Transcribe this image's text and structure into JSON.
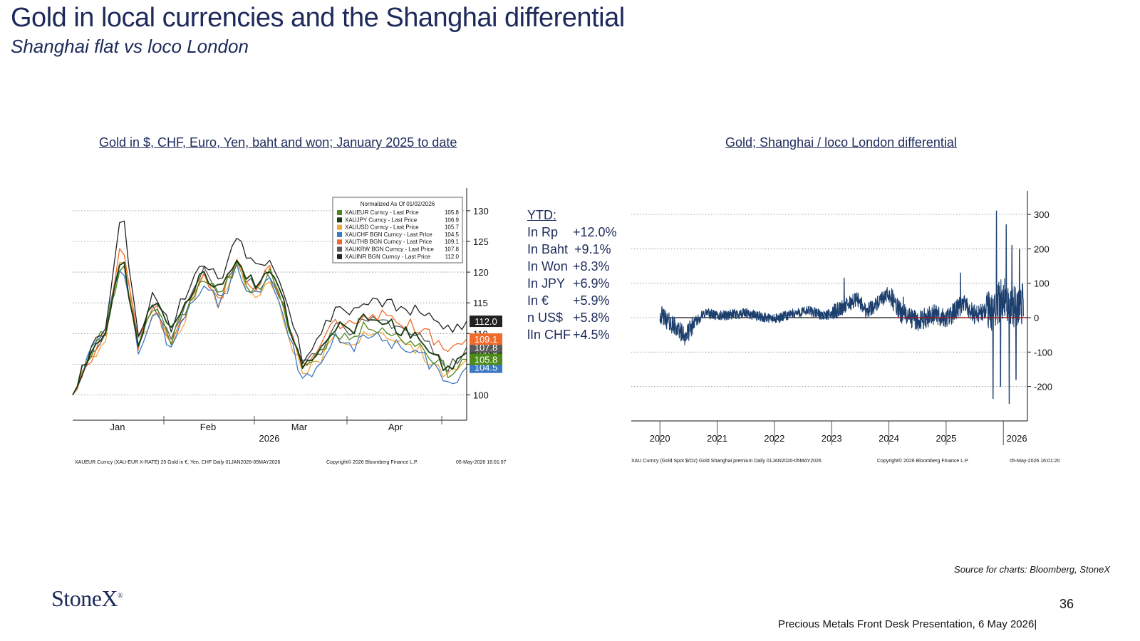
{
  "slide": {
    "title": "Gold in local currencies and the Shanghai differential",
    "subtitle": "Shanghai  flat vs loco London",
    "source": "Source for charts: Bloomberg, StoneX",
    "logo_text": "StoneX",
    "logo_mark": "®",
    "page_number": "36",
    "footer": "Precious Metals Front Desk Presentation, 6 May 2026|"
  },
  "ytd": {
    "heading": "YTD:",
    "rows": [
      {
        "name": "In Rp",
        "value": "+12.0%"
      },
      {
        "name": "In Baht",
        "value": "+9.1%"
      },
      {
        "name": "In Won",
        "value": "+8.3%"
      },
      {
        "name": "In JPY",
        "value": "+6.9%"
      },
      {
        "name": "In €",
        "value": "+5.9%"
      },
      {
        "name": "n US$",
        "value": "+5.8%"
      },
      {
        "name": "lIn CHF",
        "value": "+4.5%"
      }
    ]
  },
  "colors": {
    "text": "#1d2a5a",
    "XAUEUR": "#4e8a1b",
    "XAUJPY": "#173c12",
    "XAUUSD": "#f2a53a",
    "XAUCHF": "#3b78c2",
    "XAUTHB": "#f06a2c",
    "XAUKRW": "#5a5a5a",
    "XAUINR": "#222222",
    "differential": "#1c3f6e",
    "zero_line": "#b01818"
  },
  "chart_data": [
    {
      "type": "line",
      "title": "Gold in $, CHF, Euro, Yen, baht and won; January 2025 to date",
      "x_tick_labels": [
        "Jan",
        "Feb",
        "Mar",
        "Apr"
      ],
      "x_year_label": "2026",
      "yticks": [
        100,
        105,
        110,
        115,
        120,
        125,
        130
      ],
      "ytick_labels": [
        "100",
        "105",
        "110",
        "115",
        "120",
        "125",
        "130"
      ],
      "ylim": [
        96,
        133
      ],
      "grid": true,
      "legend_title": "Normalized As Of 01/02/2026",
      "legend_position": "top-right",
      "n_points": 85,
      "series": [
        {
          "name": "XAUEUR Curncy - Last Price",
          "last": 105.8,
          "last_label": "105.8",
          "color_key": "XAUEUR",
          "anchors": [
            100,
            106.5,
            110.8,
            122.4,
            108.5,
            114.8,
            109.0,
            115.0,
            119.5,
            115.5,
            121.8,
            116.5,
            119.8,
            112.5,
            104.5,
            107.0,
            110.5,
            109.0,
            111.5,
            110.8,
            109.0,
            108.5,
            106.0,
            103.5,
            105.8
          ]
        },
        {
          "name": "XAUJPY Curncy - Last Price",
          "last": 106.9,
          "last_label": "106.9",
          "color_key": "XAUJPY",
          "anchors": [
            100,
            106.8,
            111.0,
            122.5,
            109.0,
            115.5,
            110.0,
            115.8,
            120.3,
            116.5,
            122.7,
            117.8,
            120.9,
            113.5,
            104.0,
            106.5,
            111.5,
            110.5,
            113.0,
            112.2,
            110.3,
            109.8,
            107.0,
            103.5,
            106.9
          ]
        },
        {
          "name": "XAUUSD Curncy - Last Price",
          "last": 105.7,
          "last_label": "105.7",
          "color_key": "XAUUSD",
          "anchors": [
            100,
            105.5,
            109.5,
            124.8,
            107.8,
            113.8,
            107.5,
            113.8,
            119.0,
            114.5,
            121.2,
            115.5,
            118.8,
            111.5,
            103.0,
            105.5,
            109.0,
            107.5,
            110.5,
            109.5,
            108.0,
            107.5,
            105.0,
            103.0,
            105.7
          ]
        },
        {
          "name": "XAUCHF BGN Curncy - Last Price",
          "last": 104.5,
          "last_label": "104.5",
          "color_key": "XAUCHF",
          "anchors": [
            100,
            106.5,
            110.5,
            122.0,
            107.0,
            113.5,
            107.5,
            113.5,
            118.5,
            114.5,
            120.8,
            116.0,
            119.0,
            111.8,
            102.0,
            104.5,
            109.5,
            107.5,
            110.0,
            109.0,
            107.5,
            107.0,
            104.5,
            102.0,
            104.5
          ]
        },
        {
          "name": "XAUTHB BGN Curncy - Last Price",
          "last": 109.1,
          "last_label": "109.1",
          "color_key": "XAUTHB",
          "anchors": [
            100,
            105.5,
            110.5,
            125.2,
            108.5,
            114.5,
            108.5,
            114.5,
            119.8,
            115.8,
            122.0,
            117.5,
            120.5,
            113.0,
            104.5,
            106.8,
            112.0,
            111.0,
            113.2,
            112.8,
            111.8,
            111.0,
            109.0,
            107.5,
            109.1
          ]
        },
        {
          "name": "XAUKRW BGN Curncy - Last Price",
          "last": 107.8,
          "last_label": "107.8",
          "color_key": "XAUKRW",
          "anchors": [
            100,
            106.5,
            110.8,
            122.5,
            109.0,
            115.0,
            109.5,
            115.5,
            120.0,
            116.0,
            122.3,
            117.2,
            120.2,
            113.0,
            104.5,
            106.5,
            111.5,
            110.5,
            112.8,
            112.0,
            110.0,
            109.5,
            107.0,
            104.5,
            107.8
          ]
        },
        {
          "name": "XAUINR BGN Curncy - Last Price",
          "last": 112.0,
          "last_label": "112.0",
          "color_key": "XAUINR",
          "anchors": [
            100,
            107.0,
            111.5,
            130.5,
            110.0,
            117.0,
            111.0,
            117.5,
            121.5,
            118.5,
            126.5,
            121.0,
            122.5,
            116.5,
            106.0,
            109.0,
            114.5,
            113.5,
            115.5,
            115.0,
            114.0,
            113.5,
            112.0,
            110.5,
            112.0
          ]
        }
      ],
      "footer_left": "XAUEUR Curncy (XAU-EUR X-RATE) 25 Gold in €, Yen, CHF Daily 01JAN2026-05MAY2026",
      "footer_mid": "Copyright© 2026 Bloomberg Finance L.P.",
      "footer_right": "05-May-2026 16:01:07"
    },
    {
      "type": "line",
      "title": "Gold; Shanghai / loco London differential",
      "x_tick_labels": [
        "2020",
        "2021",
        "2022",
        "2023",
        "2024",
        "2025",
        "2026"
      ],
      "yticks": [
        -200,
        -100,
        0,
        100,
        200,
        300
      ],
      "ytick_labels": [
        "-200",
        "-100",
        "0",
        "100",
        "200",
        "300"
      ],
      "ylim": [
        -300,
        360
      ],
      "grid": true,
      "zero_line": true,
      "n_points": 1600,
      "anchors": [
        [
          2020.0,
          10
        ],
        [
          2020.25,
          -25
        ],
        [
          2020.45,
          -55
        ],
        [
          2020.6,
          -15
        ],
        [
          2020.8,
          15
        ],
        [
          2021.0,
          5
        ],
        [
          2021.5,
          12
        ],
        [
          2022.0,
          -5
        ],
        [
          2022.3,
          10
        ],
        [
          2022.6,
          20
        ],
        [
          2022.9,
          5
        ],
        [
          2023.2,
          30
        ],
        [
          2023.45,
          55
        ],
        [
          2023.6,
          20
        ],
        [
          2023.8,
          40
        ],
        [
          2024.0,
          70
        ],
        [
          2024.2,
          15
        ],
        [
          2024.5,
          -10
        ],
        [
          2024.8,
          10
        ],
        [
          2025.0,
          -5
        ],
        [
          2025.3,
          40
        ],
        [
          2025.5,
          10
        ],
        [
          2025.8,
          20
        ],
        [
          2026.0,
          60
        ],
        [
          2026.2,
          30
        ],
        [
          2026.35,
          40
        ]
      ],
      "spikes": [
        [
          2023.22,
          115
        ],
        [
          2024.25,
          60
        ],
        [
          2025.25,
          130
        ],
        [
          2025.82,
          -235
        ],
        [
          2025.88,
          310
        ],
        [
          2025.95,
          -200
        ],
        [
          2026.05,
          270
        ],
        [
          2026.1,
          -250
        ],
        [
          2026.15,
          210
        ],
        [
          2026.22,
          -180
        ],
        [
          2026.28,
          200
        ]
      ],
      "footer_left": "XAU Curncy (Gold Spot  $/Oz) Gold Shanghai premium Daily 01JAN2020-05MAY2026",
      "footer_mid": "Copyright© 2026 Bloomberg Finance L.P.",
      "footer_right": "05-May-2026 16:01:20"
    }
  ]
}
